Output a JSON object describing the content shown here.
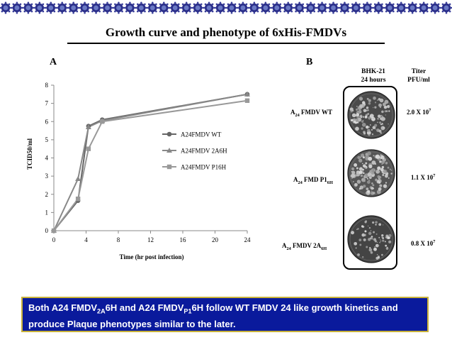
{
  "slide": {
    "title": "Growth curve and phenotype of 6xHis-FMDVs",
    "panel_a": "A",
    "panel_b": "B"
  },
  "colors": {
    "wt": "#666666",
    "a2": "#888888",
    "p1": "#999999",
    "box_bg": "#0a1a9c",
    "box_border": "#c9b23a"
  },
  "chart_data": {
    "type": "line",
    "title": "",
    "xlabel": "Time (hr post infection)",
    "ylabel": "TCID50/ml",
    "xlim": [
      0,
      24
    ],
    "ylim": [
      0,
      8
    ],
    "xticks": [
      0,
      4,
      8,
      12,
      16,
      20,
      24
    ],
    "yticks": [
      0,
      1,
      2,
      3,
      4,
      5,
      6,
      7,
      8
    ],
    "grid": false,
    "legend_position": "right",
    "series": [
      {
        "name": "A24FMDV  WT",
        "marker": "circle",
        "x": [
          0,
          3,
          4.3,
          6,
          24
        ],
        "y": [
          0,
          1.65,
          5.75,
          6.1,
          7.5
        ]
      },
      {
        "name": "A24FMDV  2A6H",
        "marker": "triangle",
        "x": [
          0,
          3,
          4.3,
          6,
          24
        ],
        "y": [
          0,
          2.85,
          5.7,
          6.05,
          7.5
        ]
      },
      {
        "name": "A24FMDV  P16H",
        "marker": "square",
        "x": [
          0,
          3,
          4.3,
          6,
          24
        ],
        "y": [
          0,
          1.75,
          4.5,
          6.0,
          7.15
        ]
      }
    ]
  },
  "phenotype": {
    "col_cell_line_1": "BHK-21",
    "col_cell_line_2": "24 hours",
    "col_titer_1": "Titer",
    "col_titer_2": "PFU/ml",
    "rows": [
      {
        "a": "A",
        "a_sub": "24",
        "name": "FMDV WT",
        "name_sub": "",
        "titer_base": "2.0 X 10",
        "titer_exp": "7"
      },
      {
        "a": "A",
        "a_sub": "24",
        "name": "FMD P1",
        "name_sub": "6H",
        "titer_base": "1.1 X 10",
        "titer_exp": "7"
      },
      {
        "a": "A",
        "a_sub": "24",
        "name": "FMDV 2A",
        "name_sub": "6H",
        "titer_base": "0.8 X 10",
        "titer_exp": "7"
      }
    ]
  },
  "summary": {
    "part1": "Both A24 FMDV",
    "sub1": "2A",
    "part2": "6H and A24 FMDV",
    "sub2": "P1",
    "part3": "6H follow WT FMDV 24 like growth kinetics and produce Plaque phenotypes similar to the later."
  }
}
